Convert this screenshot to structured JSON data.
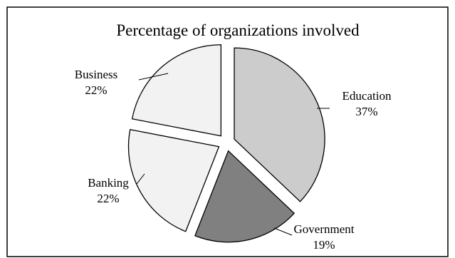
{
  "chart_data": {
    "type": "pie",
    "title": "Percentage of organizations involved",
    "exploded": true,
    "slices": [
      {
        "label": "Education",
        "value": 37,
        "value_label": "37%",
        "color": "#cccccc"
      },
      {
        "label": "Government",
        "value": 19,
        "value_label": "19%",
        "color": "#808080"
      },
      {
        "label": "Banking",
        "value": 22,
        "value_label": "22%",
        "color": "#f2f2f2"
      },
      {
        "label": "Business",
        "value": 22,
        "value_label": "22%",
        "color": "#f2f2f2"
      }
    ],
    "legend": "none"
  }
}
